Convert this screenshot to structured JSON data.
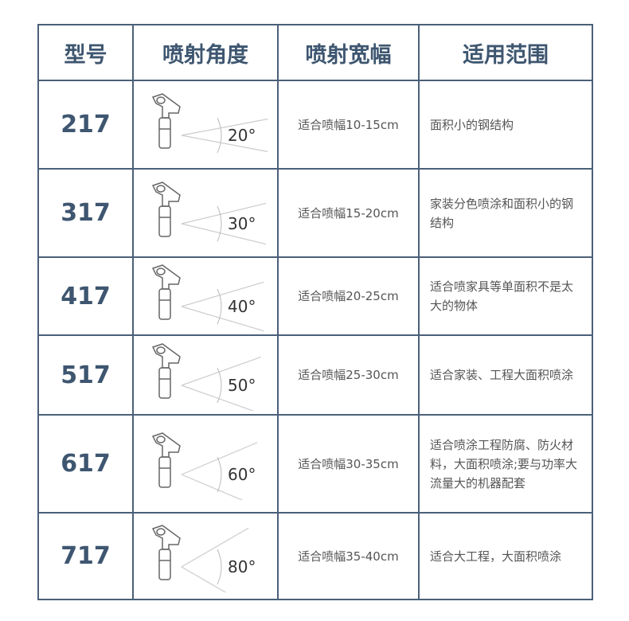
{
  "headers": [
    "型号",
    "喷射角度",
    "喷射宽幅",
    "适用范围"
  ],
  "rows": [
    {
      "model": "217",
      "angle": "20°",
      "angle_deg": 20,
      "width": "适合喷幅10-15cm",
      "use": "面积小的钢结构"
    },
    {
      "model": "317",
      "angle": "30°",
      "angle_deg": 30,
      "width": "适合喷幅15-20cm",
      "use": "家装分色喷涂和面积小的钢结构"
    },
    {
      "model": "417",
      "angle": "40°",
      "angle_deg": 40,
      "width": "适合喷幅20-25cm",
      "use": "适合喷家具等单面积不是太大的物体"
    },
    {
      "model": "517",
      "angle": "50°",
      "angle_deg": 50,
      "width": "适合喷幅25-30cm",
      "use": "适合家装、工程大面积喷涂"
    },
    {
      "model": "617",
      "angle": "60°",
      "angle_deg": 60,
      "width": "适合喷幅30-35cm",
      "use": "适合喷涂工程防腐、防火材料，大面积喷涂;要与功率大流量大的机器配套"
    },
    {
      "model": "717",
      "angle": "80°",
      "angle_deg": 80,
      "width": "适合喷幅35-40cm",
      "use": "适合大工程，大面积喷涂"
    }
  ],
  "colors": {
    "border": "#4b6078",
    "heading": "#3e5670"
  }
}
